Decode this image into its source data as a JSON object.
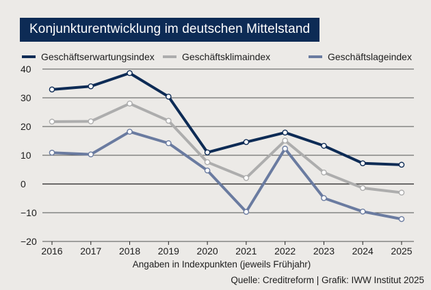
{
  "chart_data": {
    "type": "line",
    "title": "Konjunkturentwicklung im deutschen Mittelstand",
    "categories": [
      "2016",
      "2017",
      "2018",
      "2019",
      "2020",
      "2021",
      "2022",
      "2023",
      "2024",
      "2025"
    ],
    "series": [
      {
        "name": "Geschäftserwartungsindex",
        "color": "#0d2b55",
        "values": [
          32.9,
          34.0,
          38.6,
          30.4,
          11.0,
          14.6,
          17.9,
          13.3,
          7.2,
          6.7
        ]
      },
      {
        "name": "Geschäftsklimaindex",
        "color": "#adadad",
        "values": [
          21.7,
          21.8,
          28.0,
          22.0,
          7.6,
          2.1,
          15.1,
          4.0,
          -1.4,
          -3.0
        ]
      },
      {
        "name": "Geschäftslageindex",
        "color": "#6a7ba0",
        "values": [
          10.9,
          10.3,
          18.2,
          14.2,
          4.7,
          -9.7,
          12.3,
          -4.9,
          -9.6,
          -12.2
        ]
      }
    ],
    "ylim": [
      -20,
      40
    ],
    "yticks": [
      40,
      30,
      20,
      10,
      0,
      -10,
      -20
    ],
    "ytick_labels": [
      "40",
      "30",
      "20",
      "10",
      "0",
      "−10",
      "−20"
    ],
    "xlabel": "Angaben in Indexpunkten (jeweils Frühjahr)",
    "ylabel": "",
    "grid": true,
    "legend": "top",
    "source": "Quelle: Creditreform | Grafik: IWW Institut 2025"
  }
}
